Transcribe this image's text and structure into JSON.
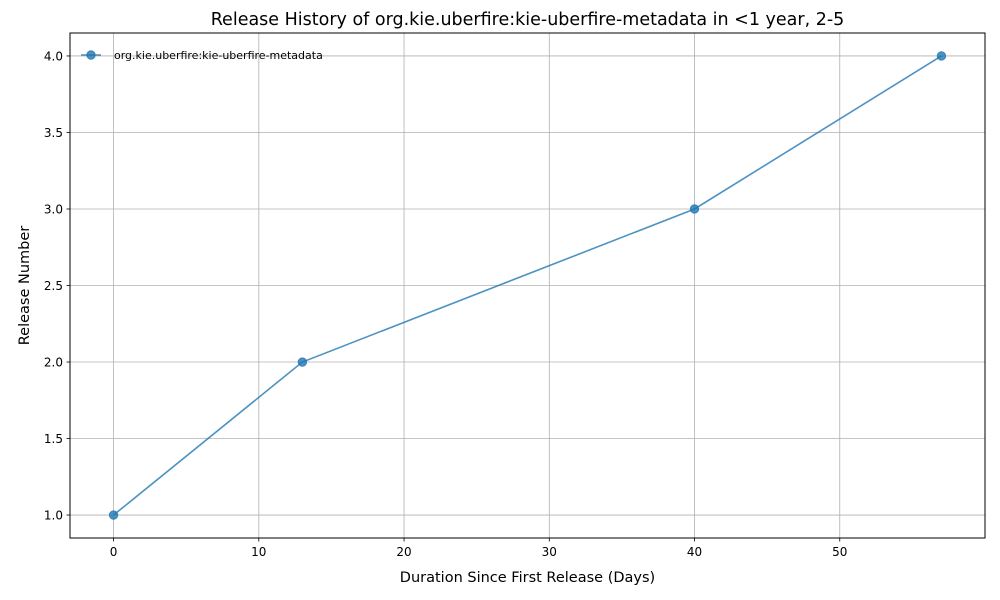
{
  "chart_data": {
    "type": "line",
    "title": "Release History of org.kie.uberfire:kie-uberfire-metadata in <1 year, 2-5",
    "xlabel": "Duration Since First Release (Days)",
    "ylabel": "Release Number",
    "xlim": [
      -3,
      60
    ],
    "ylim": [
      0.85,
      4.15
    ],
    "xticks": [
      0,
      10,
      20,
      30,
      40,
      50
    ],
    "yticks": [
      1.0,
      1.5,
      2.0,
      2.5,
      3.0,
      3.5,
      4.0
    ],
    "xtick_labels": [
      "0",
      "10",
      "20",
      "30",
      "40",
      "50"
    ],
    "ytick_labels": [
      "1.0",
      "1.5",
      "2.0",
      "2.5",
      "3.0",
      "3.5",
      "4.0"
    ],
    "grid": true,
    "legend_position": "top-left",
    "series": [
      {
        "name": "org.kie.uberfire:kie-uberfire-metadata",
        "color": "#1f77b4",
        "marker": "circle",
        "x": [
          0,
          13,
          40,
          57
        ],
        "y": [
          1,
          2,
          3,
          4
        ]
      }
    ]
  }
}
